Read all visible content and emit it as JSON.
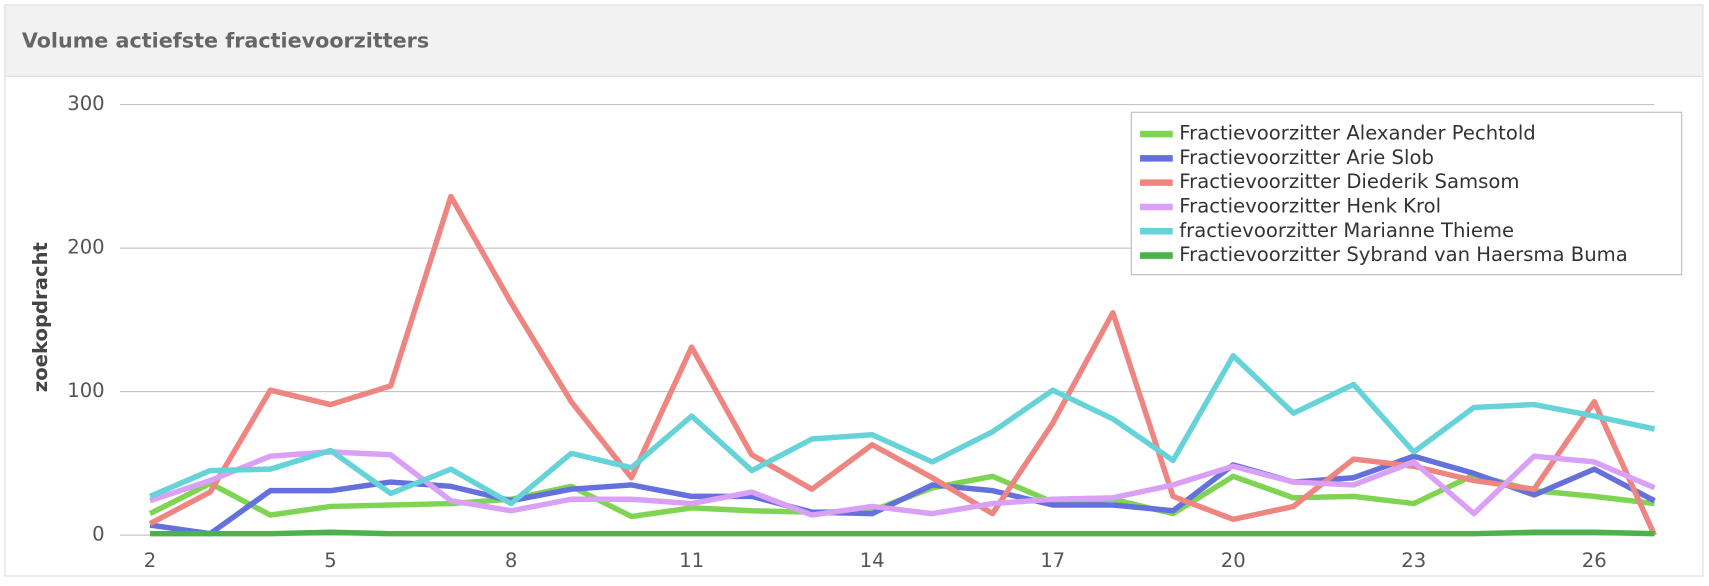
{
  "chart_data": {
    "type": "line",
    "title": "Volume actiefste fractievoorzitters",
    "y_label": "zoekopdracht",
    "x": [
      2,
      3,
      4,
      5,
      6,
      7,
      8,
      9,
      10,
      11,
      12,
      13,
      14,
      15,
      16,
      17,
      18,
      19,
      20,
      21,
      22,
      23,
      24,
      25,
      26,
      27
    ],
    "xlim": [
      1.5,
      27
    ],
    "xticks": [
      2,
      5,
      8,
      11,
      14,
      17,
      20,
      23,
      26
    ],
    "ylim": [
      0,
      300
    ],
    "yticks": [
      0,
      100,
      200,
      300
    ],
    "grid": true,
    "legend": "top-right",
    "series": [
      {
        "name": "Fractievoorzitter Alexander Pechtold",
        "color": "#80d454",
        "values": [
          15,
          36,
          14,
          20,
          21,
          22,
          25,
          34,
          13,
          19,
          17,
          16,
          17,
          33,
          41,
          23,
          25,
          15,
          41,
          26,
          27,
          22,
          42,
          31,
          27,
          22
        ]
      },
      {
        "name": "Fractievoorzitter Arie Slob",
        "color": "#6470dc",
        "values": [
          7,
          1,
          31,
          31,
          37,
          34,
          24,
          32,
          35,
          27,
          27,
          16,
          15,
          35,
          31,
          21,
          21,
          17,
          49,
          37,
          40,
          55,
          43,
          28,
          46,
          24
        ]
      },
      {
        "name": "Fractievoorzitter Diederik Samsom",
        "color": "#ee8580",
        "values": [
          8,
          30,
          101,
          91,
          104,
          236,
          162,
          93,
          40,
          131,
          56,
          32,
          63,
          40,
          15,
          78,
          155,
          27,
          11,
          20,
          53,
          48,
          38,
          32,
          93,
          0
        ]
      },
      {
        "name": "Fractievoorzitter Henk Krol",
        "color": "#d9a0f5",
        "values": [
          24,
          38,
          55,
          58,
          56,
          24,
          17,
          25,
          25,
          22,
          30,
          14,
          20,
          15,
          22,
          25,
          26,
          35,
          48,
          37,
          35,
          51,
          15,
          55,
          51,
          33
        ]
      },
      {
        "name": "fractievoorzitter Marianne Thieme",
        "color": "#66d3d8",
        "values": [
          27,
          45,
          46,
          59,
          29,
          46,
          22,
          57,
          47,
          83,
          45,
          67,
          70,
          51,
          72,
          101,
          81,
          52,
          125,
          85,
          105,
          58,
          89,
          91,
          83,
          74
        ]
      },
      {
        "name": "Fractievoorzitter Sybrand van Haersma Buma",
        "color": "#4cb34c",
        "values": [
          1,
          1,
          1,
          2,
          1,
          1,
          1,
          1,
          1,
          1,
          1,
          1,
          1,
          1,
          1,
          1,
          1,
          1,
          1,
          1,
          1,
          1,
          1,
          2,
          2,
          1
        ]
      }
    ]
  }
}
